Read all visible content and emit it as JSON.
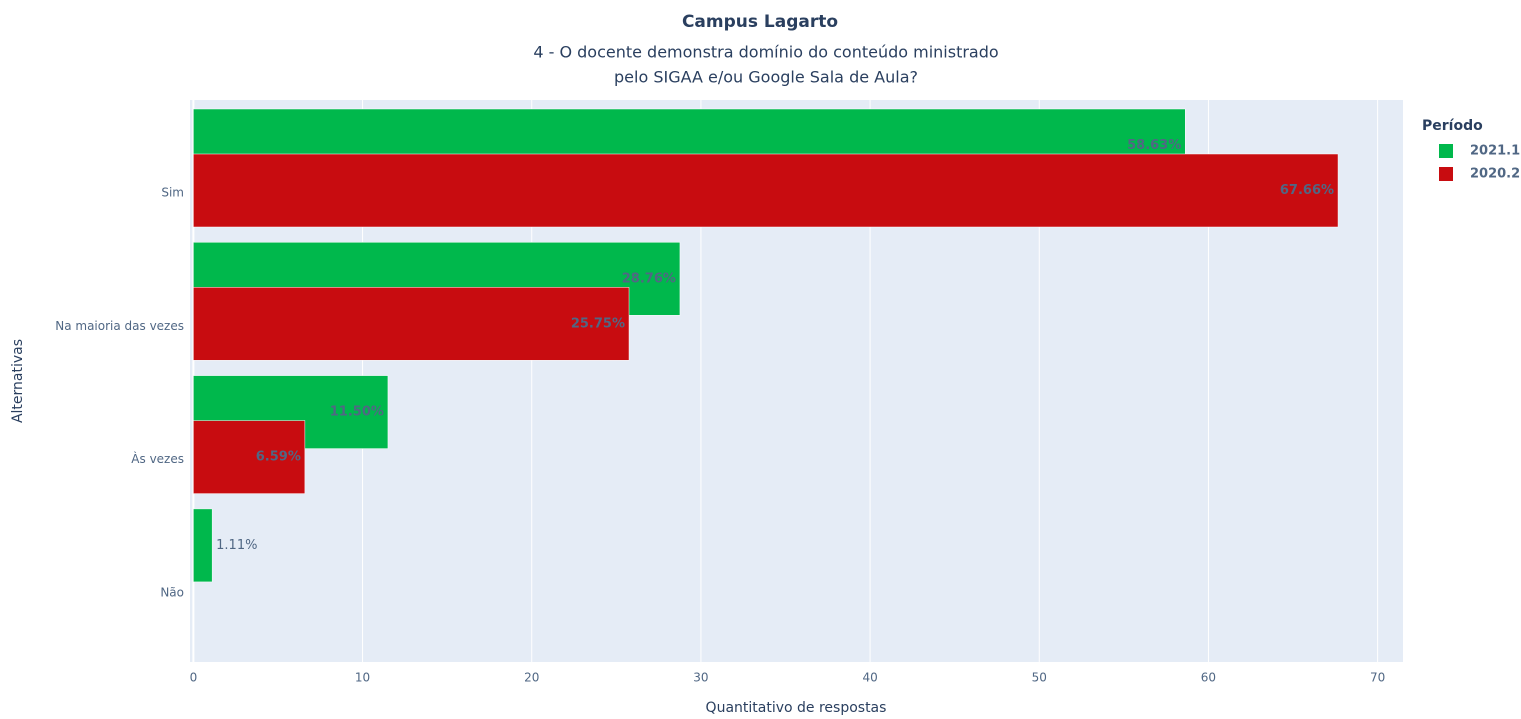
{
  "chart_data": {
    "type": "bar",
    "orientation": "horizontal",
    "title": "Campus Lagarto",
    "subtitle": [
      "4 - O docente demonstra domínio do conteúdo ministrado",
      "pelo SIGAA e/ou Google Sala de Aula?"
    ],
    "x_label": "Quantitativo de respostas",
    "y_label": "Alternativas",
    "categories": [
      "Sim",
      "Na maioria das vezes",
      "Às vezes",
      "Não"
    ],
    "series": [
      {
        "name": "2021.1",
        "color": "#00b84c",
        "values": [
          58.63,
          28.76,
          11.5,
          1.11
        ],
        "value_labels": [
          "58.63%",
          "28.76%",
          "11.50%",
          "1.11%"
        ]
      },
      {
        "name": "2020.2",
        "color": "#c80c10",
        "values": [
          67.66,
          25.75,
          6.59,
          null
        ],
        "value_labels": [
          "67.66%",
          "25.75%",
          "6.59%",
          null
        ]
      }
    ],
    "legend_title": "Período",
    "legend_position": "right",
    "xlim": [
      -0.2,
      71.5
    ],
    "xticks": [
      0,
      10,
      20,
      30,
      40,
      50,
      60,
      70
    ],
    "grid": true
  }
}
